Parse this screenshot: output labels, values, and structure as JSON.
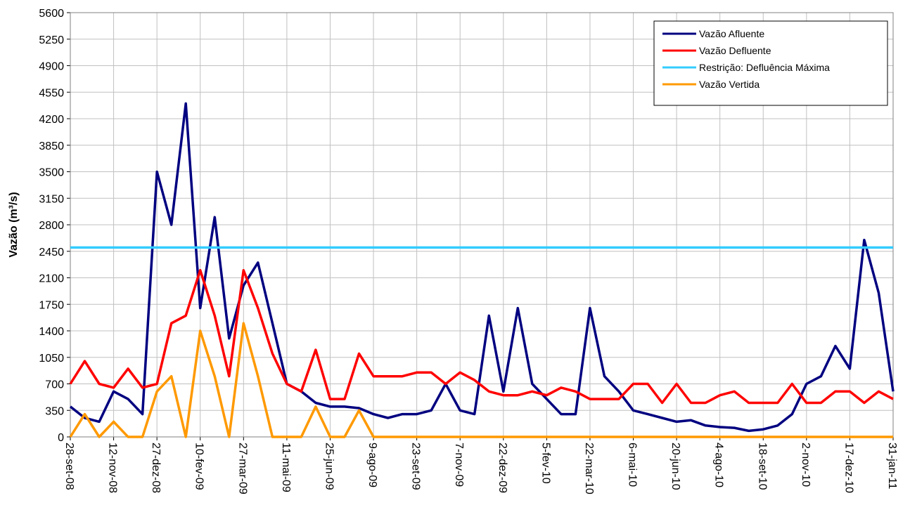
{
  "chart_data": {
    "type": "line",
    "y_label": "Vazão (m³/s)",
    "x": [
      "2008-09-28",
      "2008-10-13",
      "2008-10-28",
      "2008-11-12",
      "2008-11-27",
      "2008-12-12",
      "2008-12-27",
      "2009-01-11",
      "2009-01-26",
      "2009-02-10",
      "2009-02-25",
      "2009-03-12",
      "2009-03-27",
      "2009-04-11",
      "2009-04-26",
      "2009-05-11",
      "2009-05-26",
      "2009-06-10",
      "2009-06-25",
      "2009-07-10",
      "2009-07-25",
      "2009-08-09",
      "2009-08-24",
      "2009-09-08",
      "2009-09-23",
      "2009-10-08",
      "2009-10-23",
      "2009-11-07",
      "2009-11-22",
      "2009-12-07",
      "2009-12-22",
      "2010-01-06",
      "2010-01-21",
      "2010-02-05",
      "2010-02-20",
      "2010-03-07",
      "2010-03-22",
      "2010-04-06",
      "2010-04-21",
      "2010-05-06",
      "2010-05-21",
      "2010-06-05",
      "2010-06-20",
      "2010-07-05",
      "2010-07-20",
      "2010-08-04",
      "2010-08-19",
      "2010-09-03",
      "2010-09-18",
      "2010-10-03",
      "2010-10-18",
      "2010-11-02",
      "2010-11-17",
      "2010-12-02",
      "2010-12-17",
      "2011-01-01",
      "2011-01-16",
      "2011-01-31"
    ],
    "series": [
      {
        "name": "Vazão Afluente",
        "color": "#000080",
        "values": [
          400,
          250,
          200,
          600,
          500,
          300,
          3500,
          2800,
          4400,
          1700,
          2900,
          1300,
          2000,
          2300,
          1500,
          700,
          600,
          450,
          400,
          400,
          380,
          300,
          250,
          300,
          300,
          350,
          700,
          350,
          300,
          1600,
          600,
          1700,
          700,
          500,
          300,
          300,
          1700,
          800,
          600,
          350,
          300,
          250,
          200,
          220,
          150,
          130,
          120,
          80,
          100,
          150,
          300,
          700,
          800,
          1200,
          900,
          2600,
          1900,
          600
        ]
      },
      {
        "name": "Vazão Defluente",
        "color": "#ff0000",
        "values": [
          700,
          1000,
          700,
          650,
          900,
          650,
          700,
          1500,
          1600,
          2200,
          1600,
          800,
          2200,
          1700,
          1100,
          700,
          600,
          1150,
          500,
          500,
          1100,
          800,
          800,
          800,
          850,
          850,
          700,
          850,
          750,
          600,
          550,
          550,
          600,
          550,
          650,
          600,
          500,
          500,
          500,
          700,
          700,
          450,
          700,
          450,
          450,
          550,
          600,
          450,
          450,
          450,
          700,
          450,
          450,
          600,
          600,
          450,
          600,
          500
        ]
      },
      {
        "name": "Restrição: Defluência Máxima",
        "color": "#33ccff",
        "x": [
          "2008-09-28",
          "2011-01-31"
        ],
        "values": [
          2500,
          2500
        ]
      },
      {
        "name": "Vazão Vertida",
        "color": "#ff9900",
        "values": [
          0,
          300,
          0,
          200,
          0,
          0,
          600,
          800,
          0,
          1400,
          800,
          0,
          1500,
          800,
          0,
          0,
          0,
          400,
          0,
          0,
          350,
          0,
          0,
          0,
          0,
          0,
          0,
          0,
          0,
          0,
          0,
          0,
          0,
          0,
          0,
          0,
          0,
          0,
          0,
          0,
          0,
          0,
          0,
          0,
          0,
          0,
          0,
          0,
          0,
          0,
          0,
          0,
          0,
          0,
          0,
          0,
          0,
          0
        ]
      }
    ],
    "xlim": [
      "2008-09-28",
      "2011-01-31"
    ],
    "xticks": [
      {
        "value": "2008-09-28",
        "label": "28-set-08"
      },
      {
        "value": "2008-11-12",
        "label": "12-nov-08"
      },
      {
        "value": "2008-12-27",
        "label": "27-dez-08"
      },
      {
        "value": "2009-02-10",
        "label": "10-fev-09"
      },
      {
        "value": "2009-03-27",
        "label": "27-mar-09"
      },
      {
        "value": "2009-05-11",
        "label": "11-mai-09"
      },
      {
        "value": "2009-06-25",
        "label": "25-jun-09"
      },
      {
        "value": "2009-08-09",
        "label": "9-ago-09"
      },
      {
        "value": "2009-09-23",
        "label": "23-set-09"
      },
      {
        "value": "2009-11-07",
        "label": "7-nov-09"
      },
      {
        "value": "2009-12-22",
        "label": "22-dez-09"
      },
      {
        "value": "2010-02-05",
        "label": "5-fev-10"
      },
      {
        "value": "2010-03-22",
        "label": "22-mar-10"
      },
      {
        "value": "2010-05-06",
        "label": "6-mai-10"
      },
      {
        "value": "2010-06-20",
        "label": "20-jun-10"
      },
      {
        "value": "2010-08-04",
        "label": "4-ago-10"
      },
      {
        "value": "2010-09-18",
        "label": "18-set-10"
      },
      {
        "value": "2010-11-02",
        "label": "2-nov-10"
      },
      {
        "value": "2010-12-17",
        "label": "17-dez-10"
      },
      {
        "value": "2011-01-31",
        "label": "31-jan-11"
      }
    ],
    "ylim": [
      0,
      5600
    ],
    "yticks": [
      0,
      350,
      700,
      1050,
      1400,
      1750,
      2100,
      2450,
      2800,
      3150,
      3500,
      3850,
      4200,
      4550,
      4900,
      5250,
      5600
    ],
    "grid": true,
    "legend": "top-right"
  }
}
